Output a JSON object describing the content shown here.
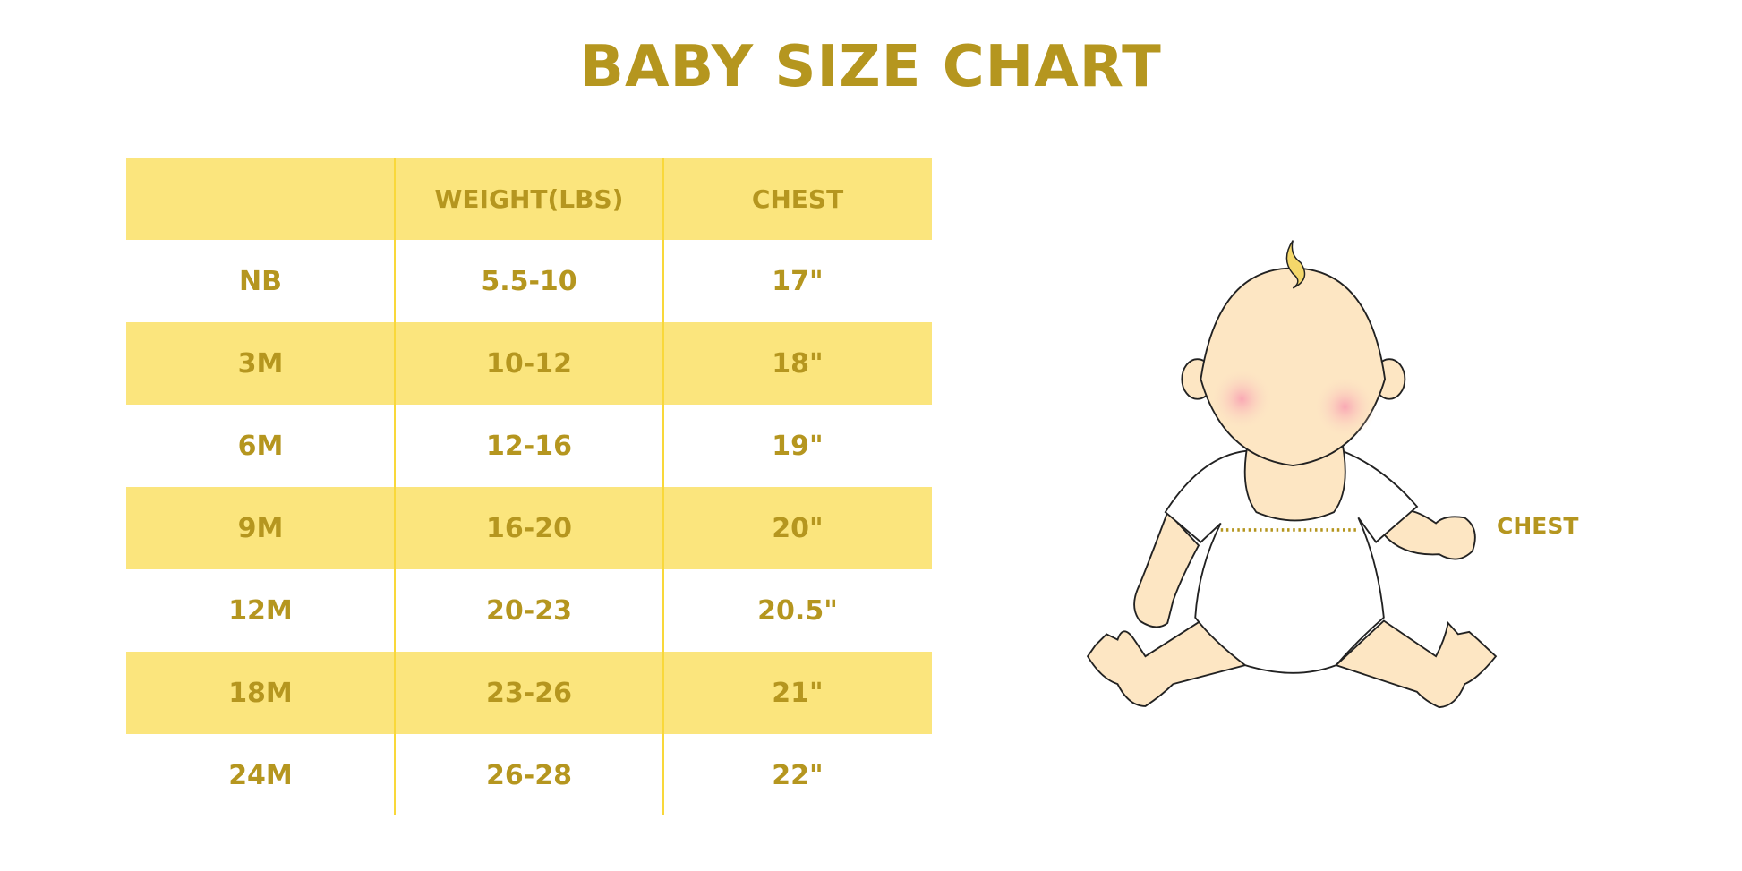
{
  "title": "BABY SIZE CHART",
  "table": {
    "headers": [
      "",
      "WEIGHT(LBS)",
      "CHEST"
    ],
    "rows": [
      [
        "NB",
        "5.5-10",
        "17\""
      ],
      [
        "3M",
        "10-12",
        "18\""
      ],
      [
        "6M",
        "12-16",
        "19\""
      ],
      [
        "9M",
        "16-20",
        "20\""
      ],
      [
        "12M",
        "20-23",
        "20.5\""
      ],
      [
        "18M",
        "23-26",
        "21\""
      ],
      [
        "24M",
        "26-28",
        "22\""
      ]
    ]
  },
  "illustration": {
    "chest_label": "CHEST"
  },
  "colors": {
    "text": "#B5961F",
    "band": "#FBE57D",
    "divider": "#F9D83A"
  }
}
